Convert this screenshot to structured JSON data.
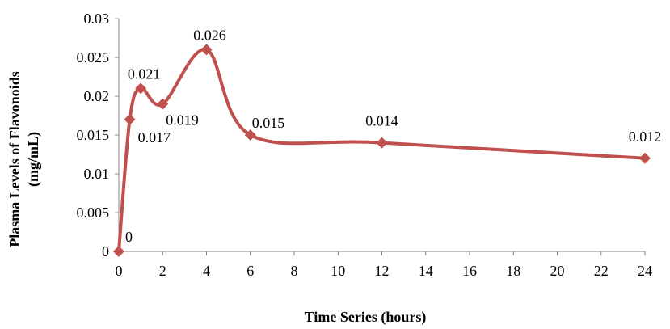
{
  "chart_data": {
    "type": "line",
    "title": "",
    "xlabel": "Time Series (hours)",
    "ylabel_line1": "Plasma Levels of Flavonoids",
    "ylabel_line2": "(mg/mL)",
    "xlim": [
      0,
      24
    ],
    "ylim": [
      0,
      0.03
    ],
    "x_ticks": [
      "0",
      "2",
      "4",
      "6",
      "8",
      "10",
      "12",
      "14",
      "16",
      "18",
      "20",
      "22",
      "24"
    ],
    "y_ticks": [
      "0",
      "0.005",
      "0.01",
      "0.015",
      "0.02",
      "0.025",
      "0.03"
    ],
    "grid": false,
    "legend": "none",
    "series": [
      {
        "color": "#C0504D",
        "marker": "diamond",
        "smooth": true,
        "points": [
          {
            "x": 0,
            "y": 0,
            "label": "0"
          },
          {
            "x": 0.5,
            "y": 0.017,
            "label": "0.017"
          },
          {
            "x": 1,
            "y": 0.021,
            "label": "0.021"
          },
          {
            "x": 2,
            "y": 0.019,
            "label": "0.019"
          },
          {
            "x": 4,
            "y": 0.026,
            "label": "0.026"
          },
          {
            "x": 6,
            "y": 0.015,
            "label": "0.015"
          },
          {
            "x": 12,
            "y": 0.014,
            "label": "0.014"
          },
          {
            "x": 24,
            "y": 0.012,
            "label": "0.012"
          }
        ]
      }
    ]
  }
}
